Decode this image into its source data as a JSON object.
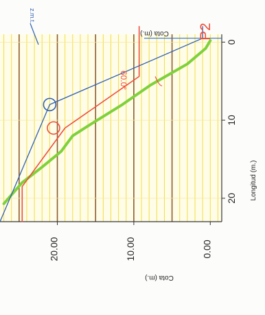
{
  "chart_data": {
    "type": "line",
    "orientation": "rotated 90° clockwise",
    "title": "P2",
    "xlabel": "Longitud (m.)",
    "ylabel": "Cota (m.)",
    "ylabel_secondary": "Cota (m.)",
    "xlim": [
      -1,
      23
    ],
    "ylim": [
      -1.5,
      27.5
    ],
    "x_ticks": [
      "0",
      "10",
      "20"
    ],
    "y_ticks": [
      "0.00",
      "10.00",
      "20.00"
    ],
    "grid": true,
    "series": [
      {
        "color": "#7fd13b",
        "x": [
          -0.2,
          0.8,
          2.8,
          5.5,
          8,
          10.5,
          12,
          14,
          16,
          18,
          20.7
        ],
        "y": [
          0,
          0.6,
          3,
          7.8,
          11.5,
          15.6,
          18,
          19.5,
          22,
          24.6,
          27
        ]
      },
      {
        "color": "#ee4c3c",
        "x": [
          -2,
          4.4,
          11,
          18.5,
          23
        ],
        "y": [
          9.3,
          9.3,
          19,
          24.6,
          24.6
        ]
      },
      {
        "color": "#2e5fb0",
        "x": [
          -2,
          -0.5,
          8,
          23
        ],
        "y": [
          1,
          1,
          21,
          27.5
        ]
      }
    ],
    "reference_line": {
      "color": "#2e6fd0",
      "x": -0.5
    },
    "annotations": [
      {
        "text": "60.0°",
        "color": "#ee4c3c",
        "x": 4.4,
        "y": 10.2
      },
      {
        "text": "z.m.t.",
        "color": "#2e5fb0"
      }
    ],
    "markers": [
      {
        "shape": "circle",
        "color": "#ee4c3c",
        "x": 11,
        "y": 20.5
      },
      {
        "shape": "circle",
        "color": "#2e5fb0",
        "x": 8,
        "y": 21
      }
    ]
  }
}
